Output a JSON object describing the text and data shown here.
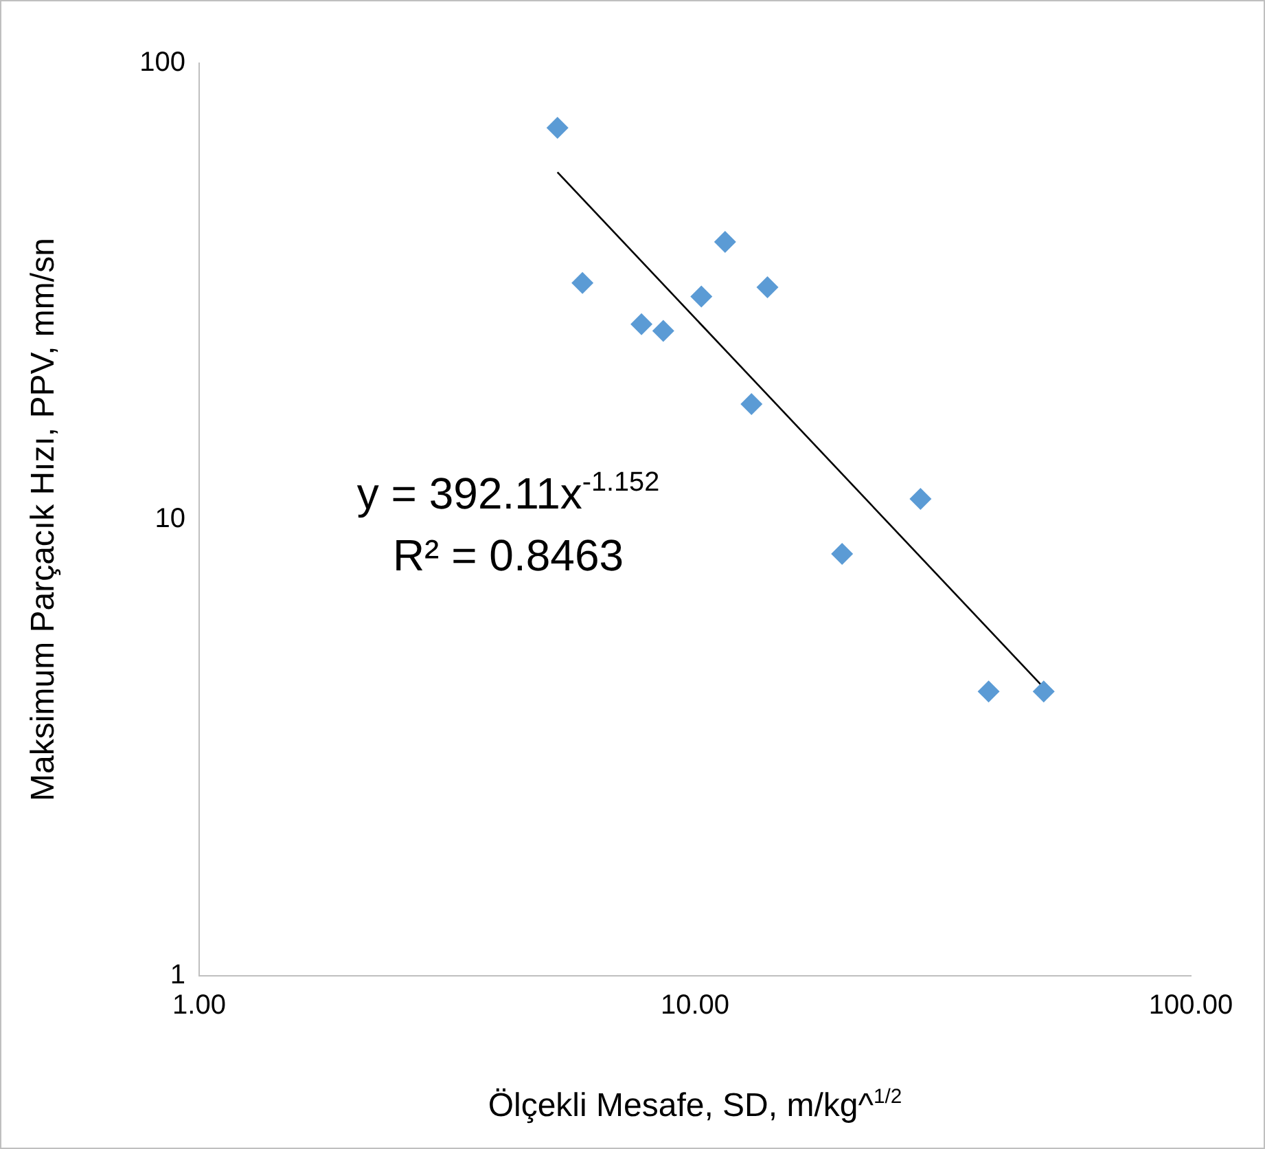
{
  "chart_data": {
    "type": "scatter",
    "xlabel": "Ölçekli Mesafe, SD, m/kg^$^{1/2}$",
    "ylabel": "Maksimum Parçacık Hızı, PPV, mm/sn",
    "series": [
      {
        "color": "#5b9bd5",
        "marker": "diamond",
        "x": [
          5.28,
          5.93,
          7.8,
          8.63,
          10.3,
          11.5,
          14.0,
          13.0,
          19.8,
          28.5,
          39.1,
          50.5
        ],
        "values": [
          72.2,
          33.0,
          26.8,
          25.9,
          30.8,
          40.6,
          32.3,
          17.9,
          8.41,
          11.1,
          4.2,
          4.2
        ]
      },
      {
        "type": "line",
        "color": "#000000",
        "marker": "none",
        "x": [
          5.28,
          50.5
        ],
        "values": [
          57.7,
          4.28
        ]
      }
    ],
    "log": "xy",
    "xlim": [
      1,
      100
    ],
    "ylim": [
      1,
      100
    ],
    "xticks": [
      {
        "value": 1,
        "label": "1.00"
      },
      {
        "value": 10,
        "label": "10.00"
      },
      {
        "value": 100,
        "label": "100.00"
      }
    ],
    "yticks": [
      1,
      10,
      100
    ],
    "annotations": [
      "y = 392.11x$^{-1.152}$",
      "R² = 0.8463"
    ],
    "grid": false,
    "legend": false
  }
}
